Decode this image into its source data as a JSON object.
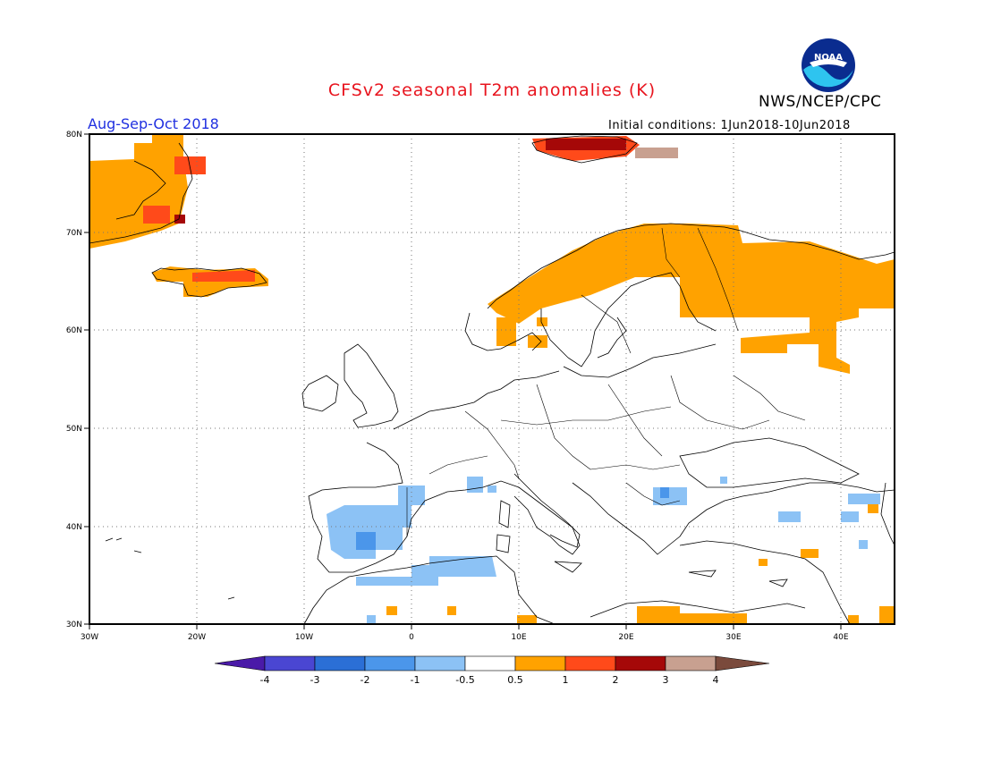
{
  "title": "CFSv2 seasonal T2m anomalies (K)",
  "agency": "NWS/NCEP/CPC",
  "period": "Aug-Sep-Oct 2018",
  "initial_conditions": "Initial conditions: 1Jun2018-10Jun2018",
  "logo": {
    "icon": "noaa-logo-icon",
    "text": "NOAA"
  },
  "lat_labels": [
    "80N",
    "70N",
    "60N",
    "50N",
    "40N",
    "30N"
  ],
  "lon_labels": [
    "30W",
    "20W",
    "10W",
    "0",
    "10E",
    "20E",
    "30E",
    "40E"
  ],
  "colorbar": {
    "labels": [
      "-4",
      "-3",
      "-2",
      "-1",
      "-0.5",
      "0.5",
      "1",
      "2",
      "3",
      "4"
    ],
    "colors": [
      "#4a1aa8",
      "#4a46d2",
      "#2b6fd6",
      "#4b96ea",
      "#8cc2f5",
      "#ffffff",
      "#ffa200",
      "#ff4a1a",
      "#a50808",
      "#c8a090",
      "#7a4a3c"
    ]
  }
}
